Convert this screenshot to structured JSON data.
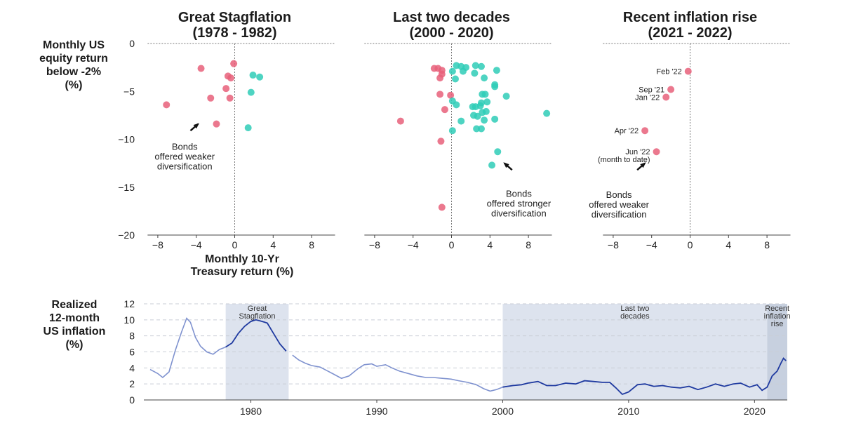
{
  "colors": {
    "stagflation_points": "#e8607a",
    "diversification_points": "#2fcdb7",
    "inflation_light": "#7f92cf",
    "inflation_dark": "#1f3aa0",
    "shade": "#dde3ee",
    "shade_recent": "#c7d0df"
  },
  "chart_data": [
    {
      "type": "scatter",
      "title": "Great Stagflation\n(1978 - 1982)",
      "ylabel": "Monthly US\nequity return\nbelow -2%\n(%)",
      "xlabel": "Monthly 10-Yr\nTreasury return (%)",
      "xlim": [
        -9.5,
        10
      ],
      "ylim": [
        -20,
        0
      ],
      "xticks": [
        "−8",
        "−4",
        "0",
        "4",
        "8"
      ],
      "yticks": [
        "0",
        "−5",
        "−10",
        "−15",
        "−20"
      ],
      "series": [
        {
          "color_key": "stagflation_points",
          "points": [
            [
              -3.5,
              -2.6
            ],
            [
              -0.1,
              -2.1
            ],
            [
              -0.7,
              -3.4
            ],
            [
              -0.4,
              -3.6
            ],
            [
              -0.9,
              -4.7
            ],
            [
              -2.5,
              -5.7
            ],
            [
              -0.5,
              -5.7
            ],
            [
              -7.1,
              -6.4
            ],
            [
              -1.9,
              -8.4
            ]
          ]
        },
        {
          "color_key": "diversification_points",
          "points": [
            [
              1.9,
              -3.3
            ],
            [
              2.6,
              -3.5
            ],
            [
              1.7,
              -5.1
            ],
            [
              1.4,
              -8.8
            ]
          ]
        }
      ],
      "annotations": [
        {
          "text": "Bonds\noffered weaker\ndiversification",
          "x": -5.2,
          "y": -11.1
        }
      ]
    },
    {
      "type": "scatter",
      "title": "Last two decades\n(2000 - 2020)",
      "xlim": [
        -9.5,
        10
      ],
      "ylim": [
        -20,
        0
      ],
      "xticks": [
        "−8",
        "−4",
        "0",
        "4",
        "8"
      ],
      "series": [
        {
          "color_key": "stagflation_points",
          "points": [
            [
              -1.8,
              -2.6
            ],
            [
              -1.4,
              -2.6
            ],
            [
              -1.0,
              -2.8
            ],
            [
              -1.0,
              -3.2
            ],
            [
              -1.2,
              -3.6
            ],
            [
              -1.2,
              -5.3
            ],
            [
              -0.1,
              -5.4
            ],
            [
              -0.7,
              -6.9
            ],
            [
              -5.3,
              -8.1
            ],
            [
              -1.1,
              -10.2
            ],
            [
              -1.0,
              -17.1
            ]
          ]
        },
        {
          "color_key": "diversification_points",
          "points": [
            [
              0.5,
              -2.3
            ],
            [
              1.0,
              -2.4
            ],
            [
              1.5,
              -2.5
            ],
            [
              2.5,
              -2.3
            ],
            [
              3.1,
              -2.4
            ],
            [
              4.7,
              -2.8
            ],
            [
              0.1,
              -2.9
            ],
            [
              1.2,
              -2.9
            ],
            [
              2.4,
              -3.1
            ],
            [
              0.4,
              -3.7
            ],
            [
              3.4,
              -3.6
            ],
            [
              4.5,
              -4.3
            ],
            [
              4.5,
              -4.5
            ],
            [
              3.5,
              -5.3
            ],
            [
              3.2,
              -5.3
            ],
            [
              5.7,
              -5.5
            ],
            [
              0.1,
              -6.0
            ],
            [
              3.1,
              -6.2
            ],
            [
              3.7,
              -6.1
            ],
            [
              0.5,
              -6.4
            ],
            [
              2.5,
              -6.6
            ],
            [
              3.0,
              -6.5
            ],
            [
              2.2,
              -6.6
            ],
            [
              3.6,
              -7.1
            ],
            [
              3.2,
              -7.2
            ],
            [
              2.3,
              -7.5
            ],
            [
              2.7,
              -7.6
            ],
            [
              4.5,
              -7.9
            ],
            [
              3.4,
              -8.0
            ],
            [
              1.0,
              -8.1
            ],
            [
              9.9,
              -7.3
            ],
            [
              2.6,
              -8.9
            ],
            [
              0.1,
              -9.1
            ],
            [
              3.1,
              -8.9
            ],
            [
              4.8,
              -11.3
            ],
            [
              4.2,
              -12.7
            ]
          ]
        }
      ],
      "annotations": [
        {
          "text": "Bonds\noffered stronger\ndiversification",
          "x": 7.0,
          "y": -16.0
        }
      ]
    },
    {
      "type": "scatter",
      "title": "Recent inflation rise\n(2021 - 2022)",
      "xlim": [
        -9.5,
        10
      ],
      "ylim": [
        -20,
        0
      ],
      "xticks": [
        "−8",
        "−4",
        "0",
        "4",
        "8"
      ],
      "series": [
        {
          "color_key": "stagflation_points",
          "points": [
            [
              -0.2,
              -2.9
            ],
            [
              -2.0,
              -4.8
            ],
            [
              -2.5,
              -5.6
            ],
            [
              -4.7,
              -9.1
            ],
            [
              -3.5,
              -11.3
            ]
          ]
        }
      ],
      "point_labels": [
        "Feb '22",
        "Sep '21",
        "Jan '22",
        "Apr '22",
        "Jun '22\n(month to date)"
      ],
      "annotations": [
        {
          "text": "Bonds\noffered weaker\ndiversification",
          "x": -7.4,
          "y": -16.1
        }
      ]
    },
    {
      "type": "line",
      "ylabel": "Realized\n12-month\nUS inflation\n(%)",
      "xlim": [
        1971.5,
        2022.6
      ],
      "ylim": [
        0,
        12
      ],
      "xticks": [
        "1980",
        "1990",
        "2000",
        "2010",
        "2020"
      ],
      "yticks": [
        "0",
        "2",
        "4",
        "6",
        "8",
        "10",
        "12"
      ],
      "shaded_periods": [
        {
          "label": "Great\nStagflation",
          "start": 1978,
          "end": 1983,
          "color_key": "shade"
        },
        {
          "label": "Last two\ndecades",
          "start": 2000,
          "end": 2021,
          "color_key": "shade"
        },
        {
          "label": "Recent\ninflation\nrise",
          "start": 2021,
          "end": 2022.6,
          "color_key": "shade_recent"
        }
      ],
      "series": [
        {
          "points": [
            [
              1972,
              3.8
            ],
            [
              1972.6,
              3.3
            ],
            [
              1973,
              2.8
            ],
            [
              1973.5,
              3.5
            ],
            [
              1974,
              6.2
            ],
            [
              1974.5,
              8.5
            ],
            [
              1974.9,
              10.2
            ],
            [
              1975.2,
              9.7
            ],
            [
              1975.6,
              7.8
            ],
            [
              1976,
              6.7
            ],
            [
              1976.5,
              6.0
            ],
            [
              1977,
              5.7
            ],
            [
              1977.5,
              6.3
            ],
            [
              1978,
              6.6
            ],
            [
              1978.5,
              7.1
            ],
            [
              1979,
              8.3
            ],
            [
              1979.5,
              9.2
            ],
            [
              1980,
              9.8
            ],
            [
              1980.4,
              10.0
            ],
            [
              1980.9,
              9.8
            ],
            [
              1981.3,
              9.6
            ],
            [
              1981.8,
              8.3
            ],
            [
              1982.3,
              7.0
            ],
            [
              1982.8,
              6.1
            ],
            [
              1983.3,
              5.6
            ],
            [
              1983.8,
              5.0
            ],
            [
              1984.3,
              4.6
            ],
            [
              1984.8,
              4.3
            ],
            [
              1985.5,
              4.1
            ],
            [
              1986,
              3.7
            ],
            [
              1986.6,
              3.2
            ],
            [
              1987.2,
              2.7
            ],
            [
              1987.8,
              3.0
            ],
            [
              1988.5,
              3.9
            ],
            [
              1989,
              4.4
            ],
            [
              1989.6,
              4.5
            ],
            [
              1990,
              4.2
            ],
            [
              1990.7,
              4.4
            ],
            [
              1991.2,
              4.0
            ],
            [
              1991.8,
              3.6
            ],
            [
              1992.5,
              3.3
            ],
            [
              1993.2,
              3.0
            ],
            [
              1993.9,
              2.8
            ],
            [
              1994.5,
              2.8
            ],
            [
              1995.2,
              2.7
            ],
            [
              1995.9,
              2.6
            ],
            [
              1996.5,
              2.4
            ],
            [
              1997.2,
              2.2
            ],
            [
              1997.9,
              1.9
            ],
            [
              1998.5,
              1.4
            ],
            [
              1999,
              1.1
            ],
            [
              1999.5,
              1.3
            ],
            [
              2000,
              1.6
            ],
            [
              2000.8,
              1.8
            ],
            [
              2001.5,
              1.9
            ],
            [
              2002,
              2.1
            ],
            [
              2002.8,
              2.3
            ],
            [
              2003.5,
              1.8
            ],
            [
              2004.2,
              1.8
            ],
            [
              2005,
              2.1
            ],
            [
              2005.8,
              2.0
            ],
            [
              2006.5,
              2.4
            ],
            [
              2007.2,
              2.3
            ],
            [
              2007.9,
              2.2
            ],
            [
              2008.5,
              2.2
            ],
            [
              2009,
              1.5
            ],
            [
              2009.5,
              0.7
            ],
            [
              2010,
              1.0
            ],
            [
              2010.7,
              1.9
            ],
            [
              2011.3,
              2.0
            ],
            [
              2012,
              1.7
            ],
            [
              2012.7,
              1.8
            ],
            [
              2013.4,
              1.6
            ],
            [
              2014.1,
              1.5
            ],
            [
              2014.8,
              1.7
            ],
            [
              2015.5,
              1.3
            ],
            [
              2016.2,
              1.6
            ],
            [
              2016.9,
              2.0
            ],
            [
              2017.6,
              1.7
            ],
            [
              2018.3,
              2.0
            ],
            [
              2018.9,
              2.1
            ],
            [
              2019.6,
              1.6
            ],
            [
              2020.2,
              1.9
            ],
            [
              2020.6,
              1.2
            ],
            [
              2021,
              1.6
            ],
            [
              2021.4,
              3.0
            ],
            [
              2021.8,
              3.6
            ],
            [
              2022.1,
              4.6
            ],
            [
              2022.3,
              5.2
            ],
            [
              2022.5,
              4.9
            ]
          ]
        }
      ]
    }
  ]
}
